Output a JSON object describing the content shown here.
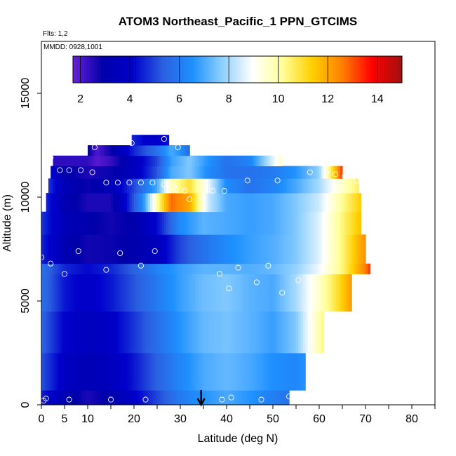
{
  "chart_data": {
    "type": "heatmap",
    "title": "ATOM3 Northeast_Pacific_1 PPN_GTCIMS",
    "flights_label": "Flts: 1,2",
    "dates_label": "MMDD: 0928,1001",
    "xlabel": "Latitude (deg N)",
    "ylabel": "Altitude (m)",
    "xlim": [
      0,
      85
    ],
    "ylim": [
      0,
      17500
    ],
    "x_ticks": [
      0,
      5,
      10,
      20,
      30,
      40,
      50,
      60,
      70,
      80
    ],
    "x_tick_labels": [
      "0",
      "5",
      "10",
      "20",
      "30",
      "40",
      "50",
      "60",
      "70",
      "80"
    ],
    "y_ticks": [
      0,
      5000,
      10000,
      15000
    ],
    "y_tick_labels": [
      "0",
      "5000",
      "10000",
      "15000"
    ],
    "colorbar": {
      "min": 1.7,
      "max": 15,
      "ticks": [
        2,
        4,
        6,
        8,
        10,
        12,
        14
      ],
      "tick_labels": [
        "2",
        "4",
        "6",
        "8",
        "10",
        "12",
        "14"
      ],
      "colors": [
        "#6a1fd8",
        "#0000aa",
        "#0000cc",
        "#2b5fe0",
        "#1e90ff",
        "#8fd0ff",
        "#ffffff",
        "#ffff99",
        "#ffd000",
        "#ff8000",
        "#ff0000",
        "#a01010"
      ]
    },
    "arrow_latitude": 34.5,
    "field_layers": [
      {
        "y0": 0,
        "y1": 700,
        "lat": [
          0,
          5,
          10,
          15,
          20,
          25,
          30,
          35,
          40,
          45,
          50,
          53.5
        ],
        "values": [
          4.5,
          3.2,
          2.6,
          3.0,
          4.0,
          5.0,
          6.0,
          6.6,
          7.0,
          6.6,
          6.1,
          5.8
        ]
      },
      {
        "y0": 700,
        "y1": 2500,
        "lat": [
          0,
          5,
          10,
          15,
          20,
          25,
          30,
          35,
          40,
          45,
          50,
          55,
          57
        ],
        "values": [
          5.2,
          3.8,
          3.3,
          3.6,
          4.4,
          5.4,
          6.3,
          7.0,
          7.3,
          7.0,
          6.5,
          6.3,
          6.6
        ]
      },
      {
        "y0": 2500,
        "y1": 4500,
        "lat": [
          0,
          5,
          10,
          15,
          20,
          25,
          30,
          35,
          40,
          45,
          50,
          55,
          58,
          61
        ],
        "values": [
          5.5,
          4.1,
          3.6,
          3.9,
          4.8,
          5.7,
          6.6,
          7.3,
          7.5,
          7.2,
          6.8,
          7.6,
          9.0,
          10.4
        ]
      },
      {
        "y0": 4500,
        "y1": 6300,
        "lat": [
          0,
          5,
          10,
          15,
          20,
          25,
          30,
          35,
          40,
          45,
          50,
          55,
          60,
          64,
          67
        ],
        "values": [
          5.8,
          4.4,
          3.9,
          4.4,
          5.2,
          6.0,
          6.8,
          7.4,
          7.6,
          7.2,
          7.0,
          8.0,
          9.6,
          11.0,
          12.2
        ]
      },
      {
        "y0": 6300,
        "y1": 6800,
        "lat": [
          0,
          5,
          10,
          15,
          20,
          25,
          30,
          35,
          40,
          45,
          50,
          55,
          60,
          65,
          70,
          71
        ],
        "values": [
          5.8,
          4.6,
          4.2,
          4.6,
          5.4,
          6.2,
          6.8,
          7.2,
          7.2,
          7.1,
          7.3,
          7.8,
          8.8,
          10.4,
          12.6,
          13.3
        ]
      },
      {
        "y0": 6800,
        "y1": 8200,
        "lat": [
          0,
          5,
          10,
          15,
          20,
          25,
          30,
          35,
          40,
          45,
          50,
          55,
          60,
          65,
          70
        ],
        "values": [
          4.6,
          3.2,
          2.7,
          2.8,
          3.0,
          3.6,
          5.0,
          5.8,
          6.4,
          6.8,
          7.1,
          7.6,
          8.6,
          10.4,
          12.4
        ]
      },
      {
        "y0": 8200,
        "y1": 9300,
        "lat": [
          0,
          5,
          10,
          15,
          20,
          25,
          30,
          35,
          40,
          45,
          50,
          55,
          60,
          65,
          69
        ],
        "values": [
          4.8,
          3.4,
          3.0,
          2.7,
          3.0,
          4.2,
          6.4,
          7.2,
          7.0,
          6.8,
          7.0,
          7.6,
          8.6,
          10.4,
          11.6
        ]
      },
      {
        "y0": 9300,
        "y1": 10200,
        "lat": [
          1,
          5,
          10,
          15,
          18,
          22,
          25,
          28,
          32,
          36,
          40,
          45,
          50,
          55,
          60,
          65,
          69
        ],
        "values": [
          4.6,
          3.2,
          2.6,
          2.6,
          4.0,
          6.5,
          10.0,
          12.8,
          12.0,
          8.4,
          7.0,
          6.8,
          7.0,
          7.6,
          8.4,
          10.2,
          11.4
        ]
      },
      {
        "y0": 10200,
        "y1": 10900,
        "lat": [
          1.5,
          5,
          10,
          15,
          20,
          25,
          28,
          32,
          36,
          40,
          45,
          50,
          55,
          60,
          65,
          68.5
        ],
        "values": [
          4.8,
          3.4,
          2.8,
          3.4,
          5.0,
          7.0,
          9.8,
          11.0,
          8.8,
          6.4,
          5.8,
          6.2,
          7.0,
          8.0,
          9.6,
          10.6
        ]
      },
      {
        "y0": 10900,
        "y1": 11500,
        "lat": [
          2,
          5,
          10,
          15,
          20,
          25,
          28,
          32,
          36,
          40,
          45,
          50,
          55,
          60,
          65
        ],
        "values": [
          4.2,
          3.0,
          2.6,
          2.8,
          3.6,
          5.2,
          7.0,
          7.6,
          6.4,
          5.8,
          5.8,
          6.0,
          6.6,
          7.8,
          13.4
        ]
      },
      {
        "y0": 11500,
        "y1": 12000,
        "lat": [
          2.5,
          10,
          12,
          15,
          20,
          25,
          28,
          32,
          36,
          40,
          45,
          52
        ],
        "values": [
          2.4,
          2.4,
          1.9,
          2.3,
          3.6,
          5.0,
          6.8,
          7.6,
          6.6,
          5.8,
          6.2,
          9.6
        ]
      },
      {
        "y0": 12000,
        "y1": 12500,
        "lat": [
          10,
          12,
          15,
          20,
          25,
          28,
          30,
          32
        ],
        "values": [
          3.0,
          2.0,
          2.8,
          4.6,
          5.8,
          7.0,
          6.6,
          5.6
        ]
      },
      {
        "y0": 12500,
        "y1": 13000,
        "lat": [
          19.5,
          23,
          26,
          27.5
        ],
        "values": [
          4.6,
          4.0,
          4.0,
          4.4
        ]
      }
    ],
    "sample_points": [
      [
        0.5,
        200
      ],
      [
        1.0,
        300
      ],
      [
        6.0,
        250
      ],
      [
        15.0,
        250
      ],
      [
        22.5,
        250
      ],
      [
        39.0,
        250
      ],
      [
        41.0,
        350
      ],
      [
        47.5,
        250
      ],
      [
        53.5,
        400
      ],
      [
        0.0,
        7100
      ],
      [
        2.0,
        6800
      ],
      [
        5.0,
        6300
      ],
      [
        8.0,
        7400
      ],
      [
        14.0,
        6500
      ],
      [
        17.0,
        7300
      ],
      [
        21.5,
        6700
      ],
      [
        24.5,
        7400
      ],
      [
        38.5,
        6300
      ],
      [
        40.5,
        5600
      ],
      [
        42.5,
        6600
      ],
      [
        46.5,
        5900
      ],
      [
        49.0,
        6700
      ],
      [
        52.0,
        5400
      ],
      [
        55.5,
        6000
      ],
      [
        70.5,
        6100
      ],
      [
        14.0,
        10700
      ],
      [
        16.5,
        10700
      ],
      [
        19.0,
        10700
      ],
      [
        21.5,
        10700
      ],
      [
        24.0,
        10700
      ],
      [
        26.5,
        10600
      ],
      [
        28.5,
        10500
      ],
      [
        29.0,
        10400
      ],
      [
        31.0,
        10300
      ],
      [
        32.0,
        9900
      ],
      [
        35.0,
        9900
      ],
      [
        37.0,
        10300
      ],
      [
        39.5,
        10300
      ],
      [
        44.5,
        10800
      ],
      [
        51.0,
        10800
      ],
      [
        2.0,
        11900
      ],
      [
        4.0,
        11300
      ],
      [
        6.0,
        11300
      ],
      [
        8.5,
        11300
      ],
      [
        11.0,
        11200
      ],
      [
        11.5,
        12400
      ],
      [
        19.5,
        12600
      ],
      [
        26.5,
        12800
      ],
      [
        29.5,
        12400
      ],
      [
        58.0,
        11200
      ],
      [
        61.5,
        11200
      ],
      [
        63.5,
        11100
      ],
      [
        65.5,
        11000
      ],
      [
        68.0,
        10800
      ]
    ]
  }
}
